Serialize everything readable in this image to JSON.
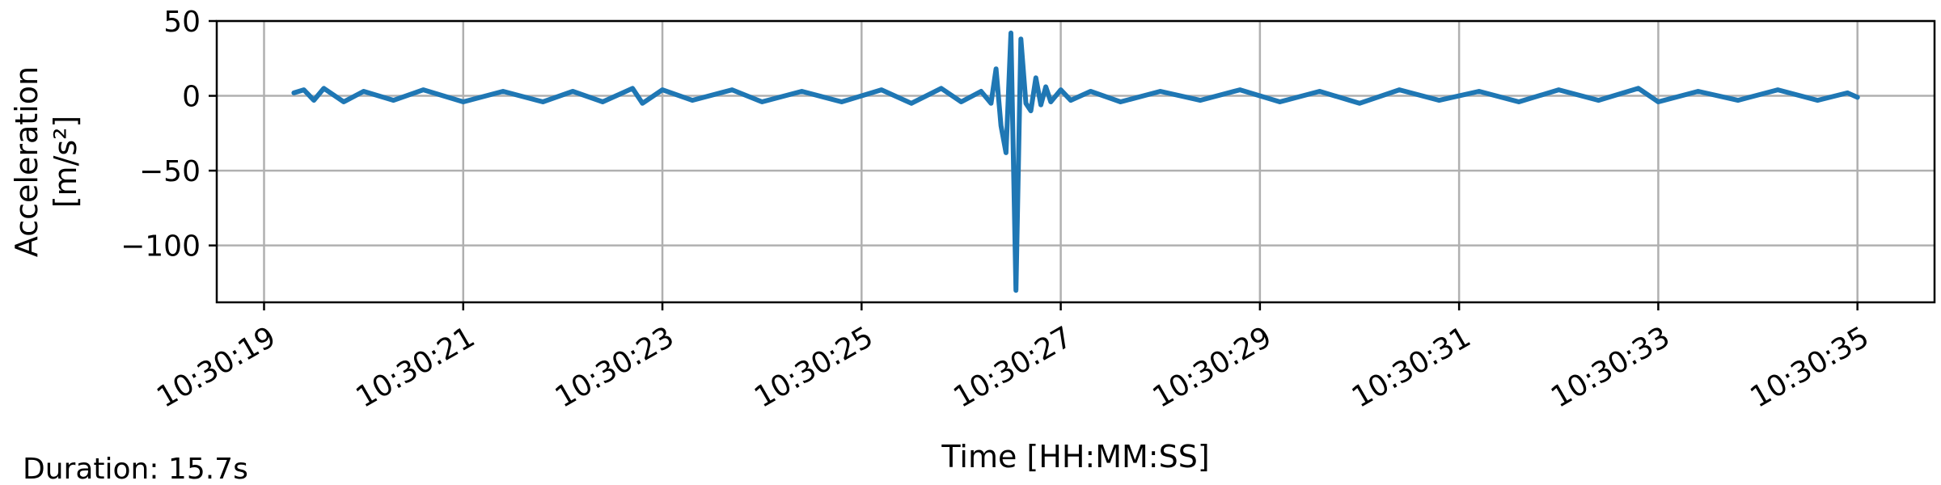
{
  "chart_data": {
    "type": "line",
    "title": "",
    "xlabel": "Time [HH:MM:SS]",
    "ylabel": "Acceleration",
    "ylabel_unit": "[m/s²]",
    "x_ticks": [
      "10:30:19",
      "10:30:21",
      "10:30:23",
      "10:30:25",
      "10:30:27",
      "10:30:29",
      "10:30:31",
      "10:30:33",
      "10:30:35"
    ],
    "y_ticks": [
      50,
      0,
      -50,
      -100
    ],
    "y_tick_labels": [
      "50",
      "0",
      "−50",
      "−100"
    ],
    "xlim": [
      "10:30:18.525",
      "10:30:35.774"
    ],
    "ylim": [
      -138,
      50
    ],
    "grid": true,
    "legend": "none",
    "line_color": "#1f77b4",
    "series": [
      {
        "x": [
          "10:30:19.300",
          "10:30:19.400",
          "10:30:19.500",
          "10:30:19.600",
          "10:30:19.800",
          "10:30:20.000",
          "10:30:20.300",
          "10:30:20.600",
          "10:30:21.000",
          "10:30:21.400",
          "10:30:21.800",
          "10:30:22.100",
          "10:30:22.400",
          "10:30:22.700",
          "10:30:22.800",
          "10:30:23.000",
          "10:30:23.300",
          "10:30:23.700",
          "10:30:24.000",
          "10:30:24.400",
          "10:30:24.800",
          "10:30:25.200",
          "10:30:25.500",
          "10:30:25.800",
          "10:30:26.000",
          "10:30:26.200",
          "10:30:26.300",
          "10:30:26.350",
          "10:30:26.400",
          "10:30:26.450",
          "10:30:26.500",
          "10:30:26.550",
          "10:30:26.600",
          "10:30:26.650",
          "10:30:26.700",
          "10:30:26.750",
          "10:30:26.800",
          "10:30:26.850",
          "10:30:26.900",
          "10:30:27.000",
          "10:30:27.100",
          "10:30:27.300",
          "10:30:27.600",
          "10:30:28.000",
          "10:30:28.400",
          "10:30:28.800",
          "10:30:29.200",
          "10:30:29.600",
          "10:30:30.000",
          "10:30:30.400",
          "10:30:30.800",
          "10:30:31.200",
          "10:30:31.600",
          "10:30:32.000",
          "10:30:32.400",
          "10:30:32.800",
          "10:30:33.000",
          "10:30:33.400",
          "10:30:33.800",
          "10:30:34.200",
          "10:30:34.600",
          "10:30:34.900",
          "10:30:35.000"
        ],
        "y": [
          2,
          4,
          -3,
          5,
          -4,
          3,
          -3,
          4,
          -4,
          3,
          -4,
          3,
          -4,
          5,
          -5,
          4,
          -3,
          4,
          -4,
          3,
          -4,
          4,
          -5,
          5,
          -4,
          3,
          -5,
          18,
          -20,
          -38,
          42,
          -130,
          38,
          -5,
          -10,
          12,
          -6,
          6,
          -4,
          4,
          -3,
          3,
          -4,
          3,
          -3,
          4,
          -4,
          3,
          -5,
          4,
          -3,
          3,
          -4,
          4,
          -3,
          5,
          -4,
          3,
          -3,
          4,
          -3,
          2,
          -1
        ]
      }
    ]
  },
  "footer": {
    "duration": "Duration: 15.7s"
  }
}
